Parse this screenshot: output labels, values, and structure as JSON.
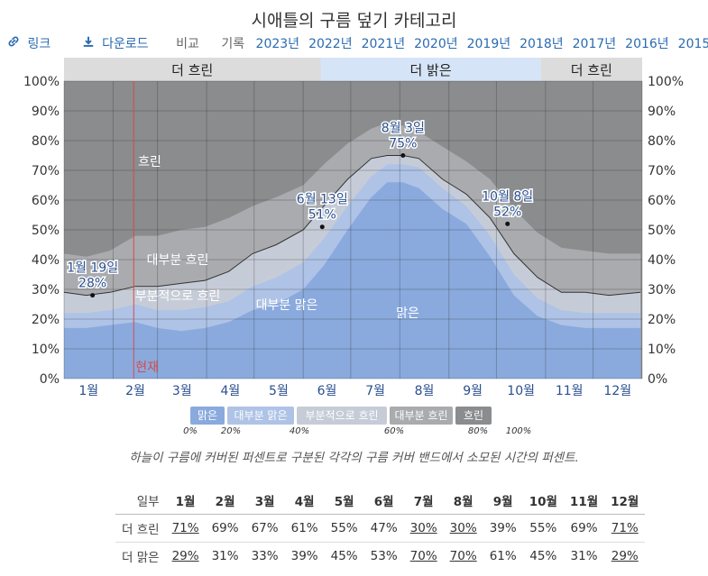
{
  "page": {
    "title": "시애틀의 구름 덮기 카테고리",
    "caption": "하늘이 구름에 커버된 퍼센트로 구분된 각각의 구름 커버 밴드에서 소모된 시간의 퍼센트."
  },
  "toolbar": {
    "link_icon": "link-icon",
    "link_label": "링크",
    "download_icon": "download-icon",
    "download_label": "다운로드",
    "compare_label": "비교",
    "history_label": "기록",
    "years": [
      "2023년",
      "2022년",
      "2021년",
      "2020년",
      "2019년",
      "2018년",
      "2017년",
      "2016년",
      "2015년"
    ]
  },
  "colors": {
    "clear": "#8aaade",
    "mostly_clear": "#aec3e6",
    "partly_cloudy": "#c6ccd7",
    "mostly_cloudy": "#a9abae",
    "overcast": "#8b8c8e",
    "season_cloudy": "#dcdcdc",
    "season_clear": "#d6e4f7",
    "today_line": "#d64a4a",
    "accent": "#2a4f8f"
  },
  "chart_data": {
    "type": "area",
    "title": "시애틀의 구름 덮기 카테고리",
    "x_tick_labels": [
      "1월",
      "2월",
      "3월",
      "4월",
      "5월",
      "6월",
      "7월",
      "8월",
      "9월",
      "10월",
      "11월",
      "12월"
    ],
    "y_left_ticks": [
      "0%",
      "10%",
      "20%",
      "30%",
      "40%",
      "50%",
      "60%",
      "70%",
      "80%",
      "90%",
      "100%"
    ],
    "y_right_ticks": [
      "100%",
      "90%",
      "80%",
      "70%",
      "60%",
      "50%",
      "40%",
      "30%",
      "20%",
      "10%",
      "0%"
    ],
    "ylim": [
      0,
      100
    ],
    "x_day": [
      1,
      15,
      30,
      46,
      60,
      75,
      90,
      105,
      120,
      135,
      152,
      165,
      180,
      195,
      205,
      215,
      225,
      240,
      255,
      270,
      285,
      300,
      315,
      330,
      345,
      365
    ],
    "series": [
      {
        "name": "맑은",
        "values": [
          11,
          11,
          12,
          14,
          12,
          10,
          10,
          12,
          15,
          17,
          22,
          30,
          43,
          55,
          60,
          60,
          58,
          50,
          44,
          32,
          20,
          14,
          11,
          11,
          10,
          11
        ]
      },
      {
        "name": "대부분 맑은",
        "values": [
          17,
          17,
          18,
          19,
          17,
          16,
          17,
          19,
          23,
          25,
          30,
          38,
          50,
          61,
          66,
          66,
          64,
          57,
          52,
          41,
          28,
          21,
          18,
          17,
          17,
          17
        ]
      },
      {
        "name": "부분적으로 흐린",
        "values": [
          22,
          22,
          23,
          25,
          23,
          23,
          24,
          26,
          31,
          34,
          39,
          47,
          58,
          68,
          72,
          72,
          71,
          64,
          58,
          48,
          35,
          27,
          23,
          22,
          22,
          22
        ]
      },
      {
        "name": "대부분 흐린",
        "values": [
          29,
          28,
          29,
          31,
          31,
          32,
          33,
          36,
          42,
          45,
          50,
          58,
          67,
          74,
          75,
          75,
          74,
          67,
          62,
          54,
          42,
          34,
          29,
          29,
          28,
          29
        ]
      },
      {
        "name": "흐린",
        "values": [
          42,
          41,
          43,
          48,
          48,
          50,
          51,
          54,
          58,
          61,
          65,
          72,
          79,
          84,
          86,
          85,
          83,
          78,
          73,
          67,
          57,
          49,
          44,
          43,
          42,
          42
        ]
      }
    ],
    "band_labels": [
      "흐린",
      "대부분 흐린",
      "부분적으로 흐린",
      "대부분 맑은",
      "맑은"
    ],
    "today_label": "현재",
    "today_day": 45,
    "annotations": [
      {
        "date": "1월 19일",
        "value": "28%",
        "day": 19,
        "y": 28
      },
      {
        "date": "6월 13일",
        "value": "51%",
        "day": 164,
        "y": 51
      },
      {
        "date": "8월 3일",
        "value": "75%",
        "day": 215,
        "y": 75
      },
      {
        "date": "10월 8일",
        "value": "52%",
        "day": 281,
        "y": 52
      }
    ],
    "seasons": [
      {
        "label": "더 흐린",
        "start_day": 1,
        "end_day": 163
      },
      {
        "label": "더 밝은",
        "start_day": 163,
        "end_day": 302
      },
      {
        "label": "더 흐린",
        "start_day": 302,
        "end_day": 366
      }
    ],
    "legend": [
      {
        "label": "맑은",
        "color": "#8aaade"
      },
      {
        "label": "대부분 맑은",
        "color": "#aec3e6"
      },
      {
        "label": "부분적으로 흐린",
        "color": "#c6ccd7"
      },
      {
        "label": "대부분 흐린",
        "color": "#a9abae"
      },
      {
        "label": "흐린",
        "color": "#8b8c8e"
      }
    ],
    "legend_ticks": [
      "0%",
      "20%",
      "40%",
      "60%",
      "80%",
      "100%"
    ]
  },
  "summary_table": {
    "header_label": "일부",
    "months": [
      "1월",
      "2월",
      "3월",
      "4월",
      "5월",
      "6월",
      "7월",
      "8월",
      "9월",
      "10월",
      "11월",
      "12월"
    ],
    "rows": [
      {
        "label": "더 흐린",
        "values": [
          "71%",
          "69%",
          "67%",
          "61%",
          "55%",
          "47%",
          "30%",
          "30%",
          "39%",
          "55%",
          "69%",
          "71%"
        ],
        "underline": [
          0,
          6,
          7,
          11
        ]
      },
      {
        "label": "더 맑은",
        "values": [
          "29%",
          "31%",
          "33%",
          "39%",
          "45%",
          "53%",
          "70%",
          "70%",
          "61%",
          "45%",
          "31%",
          "29%"
        ],
        "underline": [
          0,
          6,
          7,
          11
        ]
      }
    ]
  }
}
